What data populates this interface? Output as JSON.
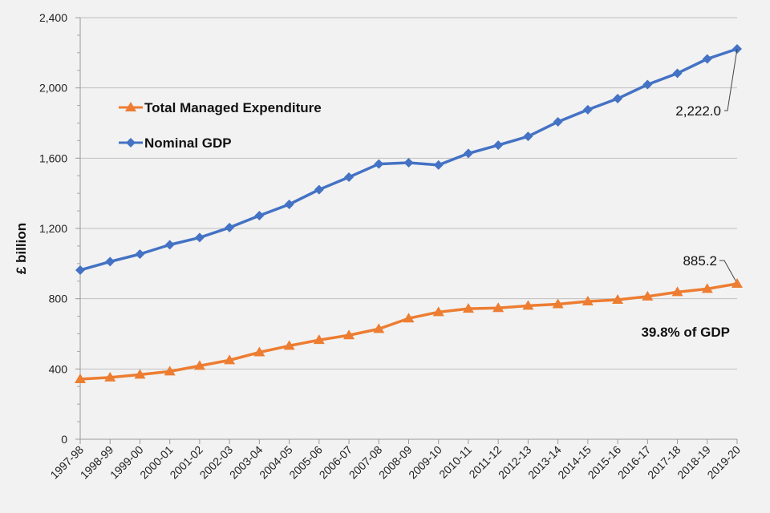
{
  "chart_data": {
    "type": "line",
    "title": "",
    "xlabel": "",
    "ylabel": "£ billion",
    "ylim": [
      0,
      2400
    ],
    "yticks": [
      0,
      400,
      800,
      1200,
      1600,
      2000,
      2400
    ],
    "ytick_labels": [
      "0",
      "400",
      "800",
      "1,200",
      "1,600",
      "2,000",
      "2,400"
    ],
    "grid": true,
    "legend_position": "top-left",
    "categories": [
      "1997-98",
      "1998-99",
      "1999-00",
      "2000-01",
      "2001-02",
      "2002-03",
      "2003-04",
      "2004-05",
      "2005-06",
      "2006-07",
      "2007-08",
      "2008-09",
      "2009-10",
      "2010-11",
      "2011-12",
      "2012-13",
      "2013-14",
      "2014-15",
      "2015-16",
      "2016-17",
      "2017-18",
      "2018-19",
      "2019-20"
    ],
    "series": [
      {
        "name": "Total Managed Expenditure",
        "color": "#ed7d31",
        "marker": "triangle",
        "values": [
          342,
          352,
          368,
          386,
          418,
          450,
          495,
          532,
          565,
          592,
          628,
          688,
          724,
          743,
          747,
          760,
          769,
          785,
          794,
          813,
          838,
          856,
          885.2
        ]
      },
      {
        "name": "Nominal GDP",
        "color": "#4472c4",
        "marker": "diamond",
        "values": [
          963,
          1011,
          1054,
          1107,
          1148,
          1205,
          1273,
          1337,
          1421,
          1492,
          1567,
          1574,
          1561,
          1627,
          1674,
          1724,
          1807,
          1876,
          1939,
          2019,
          2083,
          2165,
          2222.0
        ]
      }
    ],
    "annotations": {
      "gdp_end": "2,222.0",
      "tme_end": "885.2",
      "share": "39.8% of GDP"
    }
  }
}
